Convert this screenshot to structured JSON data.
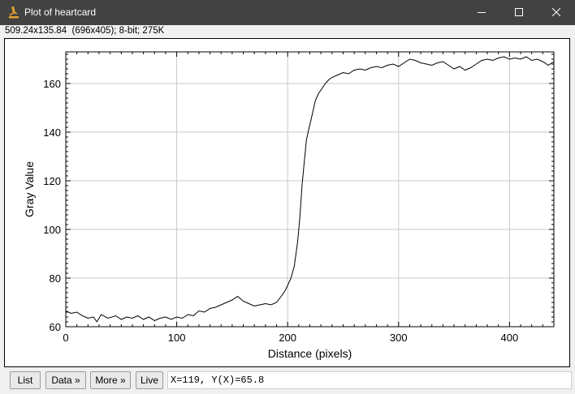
{
  "window": {
    "title": "Plot of heartcard",
    "icon": "microscope-icon",
    "controls": [
      "minimize-icon",
      "maximize-icon",
      "close-icon"
    ]
  },
  "image_info": "509.24x135.84  (696x405); 8-bit; 275K",
  "buttons": {
    "list": "List",
    "data": "Data »",
    "more": "More »",
    "live": "Live"
  },
  "status_readout": "X=119, Y(X)=65.8",
  "colors": {
    "titlebar": "#424242",
    "plot_line": "#000000",
    "grid": "#c8c8c8"
  },
  "chart_data": {
    "type": "line",
    "xlabel": "Distance (pixels)",
    "ylabel": "Gray Value",
    "xlim": [
      0,
      440
    ],
    "ylim": [
      60,
      173
    ],
    "x_ticks": [
      0,
      100,
      200,
      300,
      400
    ],
    "y_ticks": [
      60,
      80,
      100,
      120,
      140,
      160
    ],
    "grid": true,
    "x": [
      0,
      5,
      10,
      15,
      20,
      25,
      28,
      32,
      38,
      45,
      50,
      55,
      60,
      65,
      70,
      75,
      80,
      85,
      90,
      95,
      100,
      105,
      110,
      115,
      120,
      125,
      130,
      135,
      140,
      145,
      150,
      155,
      160,
      165,
      170,
      175,
      180,
      185,
      190,
      195,
      198,
      200,
      203,
      206,
      209,
      211,
      213,
      215,
      217,
      219,
      221,
      223,
      225,
      228,
      231,
      234,
      237,
      240,
      245,
      250,
      255,
      260,
      265,
      270,
      275,
      280,
      285,
      290,
      295,
      300,
      305,
      310,
      315,
      320,
      325,
      330,
      335,
      340,
      345,
      350,
      355,
      360,
      365,
      370,
      375,
      380,
      385,
      390,
      395,
      400,
      405,
      410,
      415,
      420,
      425,
      430,
      435,
      440
    ],
    "values": [
      66.5,
      65.5,
      66.0,
      64.5,
      63.5,
      64.0,
      62.0,
      65.0,
      63.5,
      64.5,
      63.0,
      64.0,
      63.5,
      64.5,
      63.0,
      64.0,
      62.5,
      63.5,
      64.0,
      63.0,
      64.0,
      63.5,
      65.0,
      64.5,
      66.5,
      66.0,
      67.5,
      68.0,
      69.0,
      70.0,
      71.0,
      72.5,
      70.5,
      69.5,
      68.5,
      69.0,
      69.5,
      69.0,
      70.0,
      73.0,
      75.0,
      77.0,
      80.0,
      85.0,
      95.0,
      105.0,
      118.0,
      128.0,
      137.0,
      141.0,
      145.0,
      149.0,
      153.0,
      156.0,
      158.0,
      160.0,
      161.5,
      162.5,
      163.5,
      164.5,
      164.0,
      165.5,
      166.0,
      165.5,
      166.5,
      167.0,
      166.5,
      167.5,
      168.0,
      167.0,
      168.5,
      170.0,
      169.5,
      168.5,
      168.0,
      167.5,
      168.5,
      169.0,
      167.5,
      166.0,
      167.0,
      165.5,
      166.5,
      168.0,
      169.5,
      170.0,
      169.5,
      170.5,
      171.0,
      170.0,
      170.5,
      170.0,
      171.0,
      169.5,
      170.0,
      169.0,
      167.5,
      169.0
    ]
  }
}
